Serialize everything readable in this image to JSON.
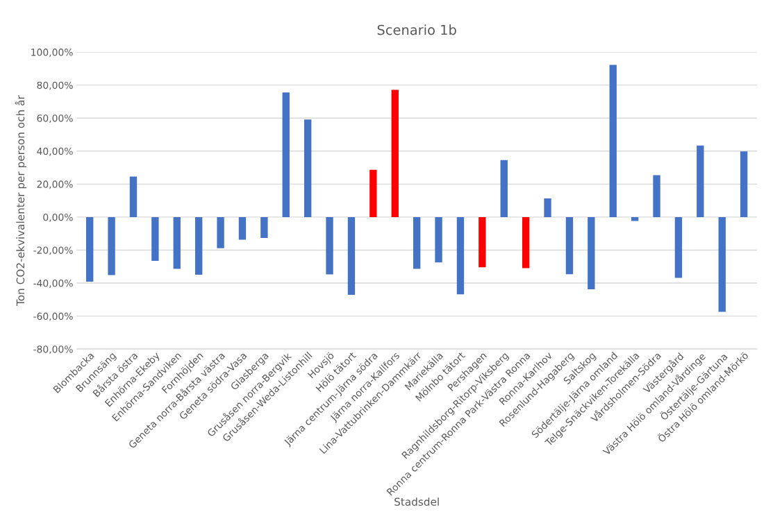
{
  "chart_data": {
    "type": "bar",
    "title": "Scenario 1b",
    "xlabel": "Stadsdel",
    "ylabel": "Ton CO2-ekvivalenter per person och år",
    "categories": [
      "Blombacka",
      "Brunnsäng",
      "Bårsta östra",
      "Enhörna-Ekeby",
      "Enhörna-Sandviken",
      "Fornhöjden",
      "Geneta norra-Bårsta västra",
      "Geneta södra-Vasa",
      "Glasberga",
      "Grusåsen norra-Bergvik",
      "Grusåsen-Weda-Listonhill",
      "Hovsjö",
      "Hölö tätort",
      "Järna centrum-Järna södra",
      "Järna norra-Kallfors",
      "Lina-Vattubrinken-Dammkärr",
      "Mariekälla",
      "Mölnbo tätort",
      "Pershagen",
      "Ragnhildsborg-Ritorp-Viksberg",
      "Ronna centrum-Ronna Park-Västra Ronna",
      "Ronna-Karlhov",
      "Rosenlund-Hagaberg",
      "Saltskog",
      "Södertälje-Järna omland",
      "Telge-Snäckviken-Torekälla",
      "Vårdsholmen-Södra",
      "Västergård",
      "Västra Hölö omland-Vårdinge",
      "Östertälje-Gärtuna",
      "Östra Hölö omland-Mörkö"
    ],
    "values": [
      -39.1,
      -35.1,
      24.6,
      -26.5,
      -31.4,
      -34.9,
      -18.9,
      -13.7,
      -12.7,
      75.5,
      59.1,
      -34.7,
      -47.1,
      28.7,
      77.1,
      -31.4,
      -27.5,
      -46.8,
      -30.4,
      34.6,
      -30.9,
      11.3,
      -34.6,
      -43.8,
      92.3,
      -2.4,
      25.4,
      -36.8,
      43.4,
      -57.4,
      39.8
    ],
    "colors": [
      "#4472c4",
      "#4472c4",
      "#4472c4",
      "#4472c4",
      "#4472c4",
      "#4472c4",
      "#4472c4",
      "#4472c4",
      "#4472c4",
      "#4472c4",
      "#4472c4",
      "#4472c4",
      "#4472c4",
      "#ff0000",
      "#ff0000",
      "#4472c4",
      "#4472c4",
      "#4472c4",
      "#ff0000",
      "#4472c4",
      "#ff0000",
      "#4472c4",
      "#4472c4",
      "#4472c4",
      "#4472c4",
      "#4472c4",
      "#4472c4",
      "#4472c4",
      "#4472c4",
      "#4472c4",
      "#4472c4"
    ],
    "ylim": [
      -80,
      100
    ],
    "yticks": [
      {
        "value": -80,
        "label": "-80,00%"
      },
      {
        "value": -60,
        "label": "-60,00%"
      },
      {
        "value": -40,
        "label": "-40,00%"
      },
      {
        "value": -20,
        "label": "-20,00%"
      },
      {
        "value": 0,
        "label": "0,00%"
      },
      {
        "value": 20,
        "label": "20,00%"
      },
      {
        "value": 40,
        "label": "40,00%"
      },
      {
        "value": 60,
        "label": "60,00%"
      },
      {
        "value": 80,
        "label": "80,00%"
      },
      {
        "value": 100,
        "label": "100,00%"
      }
    ],
    "grid": "y",
    "legend": false
  }
}
